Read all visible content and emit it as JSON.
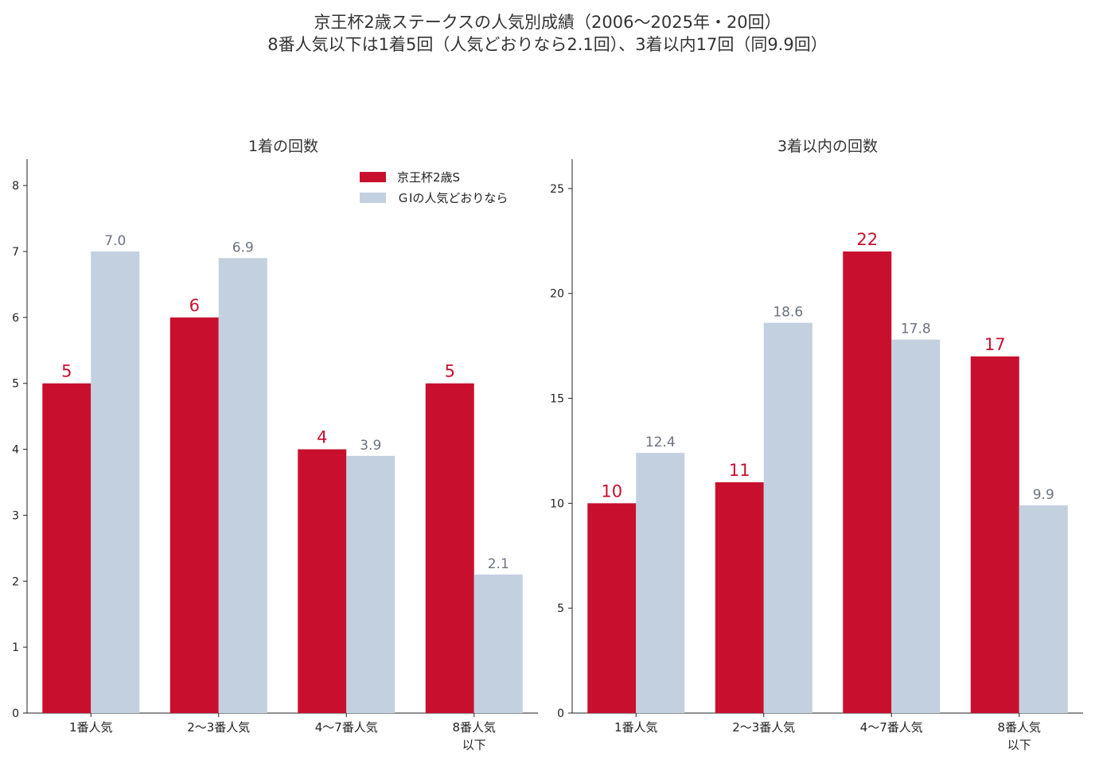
{
  "title": {
    "line1": "京王杯2歳ステークスの人気別成績（2006〜2025年・20回）",
    "line2": "8番人気以下は1着5回（人気どおりなら2.1回）、3着以内17回（同9.9回）"
  },
  "colors": {
    "actual": "#c8102e",
    "expected": "#c3d0e0",
    "expected_label": "#6b7280",
    "axis": "#222222"
  },
  "legend": {
    "actual": "京王杯2歳S",
    "expected": "ＧⅠの人気どおりなら"
  },
  "chart_data": [
    {
      "type": "bar",
      "title": "1着の回数",
      "categories": [
        "1番人気",
        "2〜3番人気",
        "4〜7番人気",
        "8番人気\n以下"
      ],
      "series": [
        {
          "name": "京王杯2歳S",
          "values": [
            5,
            6,
            4,
            5
          ],
          "labels": [
            "5",
            "6",
            "4",
            "5"
          ]
        },
        {
          "name": "ＧⅠの人気どおりなら",
          "values": [
            7.0,
            6.9,
            3.9,
            2.1
          ],
          "labels": [
            "7.0",
            "6.9",
            "3.9",
            "2.1"
          ]
        }
      ],
      "ylim": [
        0,
        8.4
      ],
      "yticks": [
        "0",
        "1",
        "2",
        "3",
        "4",
        "5",
        "6",
        "7",
        "8"
      ],
      "legend_position": "top-right"
    },
    {
      "type": "bar",
      "title": "3着以内の回数",
      "categories": [
        "1番人気",
        "2〜3番人気",
        "4〜7番人気",
        "8番人気\n以下"
      ],
      "series": [
        {
          "name": "京王杯2歳S",
          "values": [
            10,
            11,
            22,
            17
          ],
          "labels": [
            "10",
            "11",
            "22",
            "17"
          ]
        },
        {
          "name": "ＧⅠの人気どおりなら",
          "values": [
            12.4,
            18.6,
            17.8,
            9.9
          ],
          "labels": [
            "12.4",
            "18.6",
            "17.8",
            "9.9"
          ]
        }
      ],
      "ylim": [
        0,
        26.4
      ],
      "yticks": [
        "0",
        "5",
        "10",
        "15",
        "20",
        "25"
      ]
    }
  ]
}
